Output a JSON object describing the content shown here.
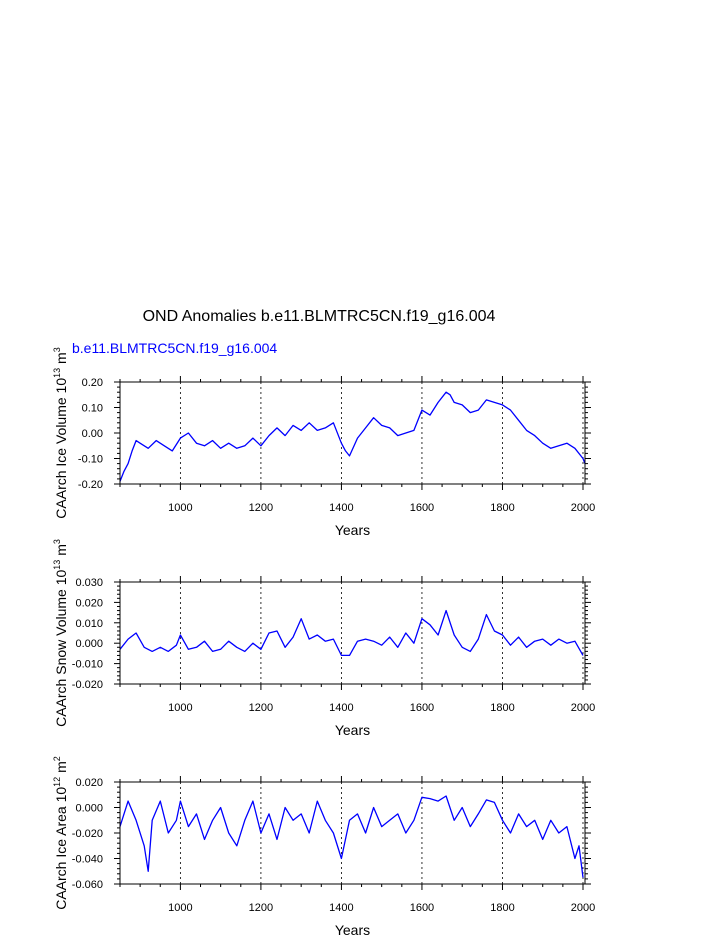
{
  "title": "OND Anomalies b.e11.BLMTRC5CN.f19_g16.004",
  "subtitle": "b.e11.BLMTRC5CN.f19_g16.004",
  "series_color": "#0000ff",
  "chart_data": [
    {
      "type": "line",
      "xlabel": "Years",
      "ylabel": "CAArch Ice Volume 10^13 m^3",
      "ylabel_parts": {
        "base": "CAArch Ice Volume 10",
        "exp1": "13",
        "mid": " m",
        "exp2": "3"
      },
      "xlim": [
        850,
        2005
      ],
      "ylim": [
        -0.2,
        0.2
      ],
      "xticks": [
        1000,
        1200,
        1400,
        1600,
        1800,
        2000
      ],
      "xtick_labels": [
        "1000",
        "1200",
        "1400",
        "1600",
        "1800",
        "2000"
      ],
      "yticks": [
        -0.2,
        -0.1,
        0.0,
        0.1,
        0.2
      ],
      "ytick_labels": [
        "-0.20",
        "-0.10",
        "0.00",
        "0.10",
        "0.20"
      ],
      "grid": "vertical dashed at x ticks",
      "x": [
        850,
        860,
        870,
        880,
        890,
        900,
        920,
        940,
        960,
        980,
        1000,
        1020,
        1040,
        1060,
        1080,
        1100,
        1120,
        1140,
        1160,
        1180,
        1200,
        1220,
        1240,
        1260,
        1280,
        1300,
        1320,
        1340,
        1360,
        1380,
        1400,
        1410,
        1420,
        1440,
        1460,
        1480,
        1500,
        1520,
        1540,
        1560,
        1580,
        1600,
        1620,
        1640,
        1660,
        1670,
        1680,
        1700,
        1720,
        1740,
        1760,
        1780,
        1800,
        1820,
        1840,
        1860,
        1880,
        1900,
        1920,
        1940,
        1960,
        1980,
        2000,
        2005
      ],
      "y": [
        -0.19,
        -0.15,
        -0.12,
        -0.07,
        -0.03,
        -0.04,
        -0.06,
        -0.03,
        -0.05,
        -0.07,
        -0.02,
        0.0,
        -0.04,
        -0.05,
        -0.03,
        -0.06,
        -0.04,
        -0.06,
        -0.05,
        -0.02,
        -0.05,
        -0.01,
        0.02,
        -0.01,
        0.03,
        0.01,
        0.04,
        0.01,
        0.02,
        0.04,
        -0.04,
        -0.07,
        -0.09,
        -0.02,
        0.02,
        0.06,
        0.03,
        0.02,
        -0.01,
        0.0,
        0.01,
        0.09,
        0.07,
        0.12,
        0.16,
        0.15,
        0.12,
        0.11,
        0.08,
        0.09,
        0.13,
        0.12,
        0.11,
        0.09,
        0.05,
        0.01,
        -0.01,
        -0.04,
        -0.06,
        -0.05,
        -0.04,
        -0.06,
        -0.1,
        -0.12
      ]
    },
    {
      "type": "line",
      "xlabel": "Years",
      "ylabel": "CAArch Snow Volume 10^13 m^3",
      "ylabel_parts": {
        "base": "CAArch Snow Volume 10",
        "exp1": "13",
        "mid": " m",
        "exp2": "3"
      },
      "xlim": [
        850,
        2005
      ],
      "ylim": [
        -0.02,
        0.03
      ],
      "xticks": [
        1000,
        1200,
        1400,
        1600,
        1800,
        2000
      ],
      "xtick_labels": [
        "1000",
        "1200",
        "1400",
        "1600",
        "1800",
        "2000"
      ],
      "yticks": [
        -0.02,
        -0.01,
        0.0,
        0.01,
        0.02,
        0.03
      ],
      "ytick_labels": [
        "-0.020",
        "-0.010",
        "0.000",
        "0.010",
        "0.020",
        "0.030"
      ],
      "grid": "vertical dashed at x ticks",
      "x": [
        850,
        870,
        890,
        910,
        930,
        950,
        970,
        990,
        1000,
        1020,
        1040,
        1060,
        1080,
        1100,
        1120,
        1140,
        1160,
        1180,
        1200,
        1220,
        1240,
        1260,
        1280,
        1300,
        1320,
        1340,
        1360,
        1380,
        1400,
        1420,
        1440,
        1460,
        1480,
        1500,
        1520,
        1540,
        1560,
        1580,
        1600,
        1620,
        1640,
        1660,
        1680,
        1700,
        1720,
        1740,
        1760,
        1780,
        1800,
        1820,
        1840,
        1860,
        1880,
        1900,
        1920,
        1940,
        1960,
        1980,
        2000
      ],
      "y": [
        -0.003,
        0.002,
        0.005,
        -0.002,
        -0.004,
        -0.002,
        -0.004,
        -0.001,
        0.004,
        -0.003,
        -0.002,
        0.001,
        -0.004,
        -0.003,
        0.001,
        -0.002,
        -0.004,
        0.0,
        -0.003,
        0.005,
        0.006,
        -0.002,
        0.003,
        0.012,
        0.002,
        0.004,
        0.001,
        0.002,
        -0.006,
        -0.006,
        0.001,
        0.002,
        0.001,
        -0.001,
        0.003,
        -0.002,
        0.005,
        0.0,
        0.012,
        0.009,
        0.004,
        0.016,
        0.004,
        -0.002,
        -0.004,
        0.002,
        0.014,
        0.006,
        0.004,
        -0.001,
        0.003,
        -0.002,
        0.001,
        0.002,
        -0.001,
        0.002,
        0.0,
        0.001,
        -0.006
      ]
    },
    {
      "type": "line",
      "xlabel": "Years",
      "ylabel": "CAArch Ice Area 10^12 m^2",
      "ylabel_parts": {
        "base": "CAArch Ice Area 10",
        "exp1": "12",
        "mid": " m",
        "exp2": "2"
      },
      "xlim": [
        850,
        2005
      ],
      "ylim": [
        -0.06,
        0.02
      ],
      "xticks": [
        1000,
        1200,
        1400,
        1600,
        1800,
        2000
      ],
      "xtick_labels": [
        "1000",
        "1200",
        "1400",
        "1600",
        "1800",
        "2000"
      ],
      "yticks": [
        -0.06,
        -0.04,
        -0.02,
        0.0,
        0.02
      ],
      "ytick_labels": [
        "-0.060",
        "-0.040",
        "-0.020",
        "0.000",
        "0.020"
      ],
      "grid": "vertical dashed at x ticks",
      "x": [
        850,
        870,
        890,
        910,
        920,
        930,
        950,
        970,
        990,
        1000,
        1020,
        1040,
        1060,
        1080,
        1100,
        1120,
        1140,
        1160,
        1180,
        1200,
        1220,
        1240,
        1260,
        1280,
        1300,
        1320,
        1340,
        1360,
        1380,
        1400,
        1420,
        1440,
        1460,
        1480,
        1500,
        1520,
        1540,
        1560,
        1580,
        1600,
        1620,
        1640,
        1660,
        1680,
        1700,
        1720,
        1740,
        1760,
        1780,
        1800,
        1820,
        1840,
        1860,
        1880,
        1900,
        1920,
        1940,
        1960,
        1980,
        1990,
        2000
      ],
      "y": [
        -0.015,
        0.005,
        -0.01,
        -0.03,
        -0.05,
        -0.01,
        0.005,
        -0.02,
        -0.01,
        0.005,
        -0.015,
        -0.005,
        -0.025,
        -0.01,
        0.0,
        -0.02,
        -0.03,
        -0.01,
        0.005,
        -0.02,
        -0.005,
        -0.025,
        0.0,
        -0.01,
        -0.005,
        -0.02,
        0.005,
        -0.01,
        -0.02,
        -0.04,
        -0.01,
        -0.005,
        -0.02,
        0.0,
        -0.015,
        -0.01,
        -0.005,
        -0.02,
        -0.01,
        0.008,
        0.007,
        0.005,
        0.009,
        -0.01,
        0.0,
        -0.015,
        -0.005,
        0.006,
        0.004,
        -0.01,
        -0.02,
        -0.005,
        -0.015,
        -0.01,
        -0.025,
        -0.01,
        -0.02,
        -0.015,
        -0.04,
        -0.03,
        -0.055
      ]
    }
  ]
}
